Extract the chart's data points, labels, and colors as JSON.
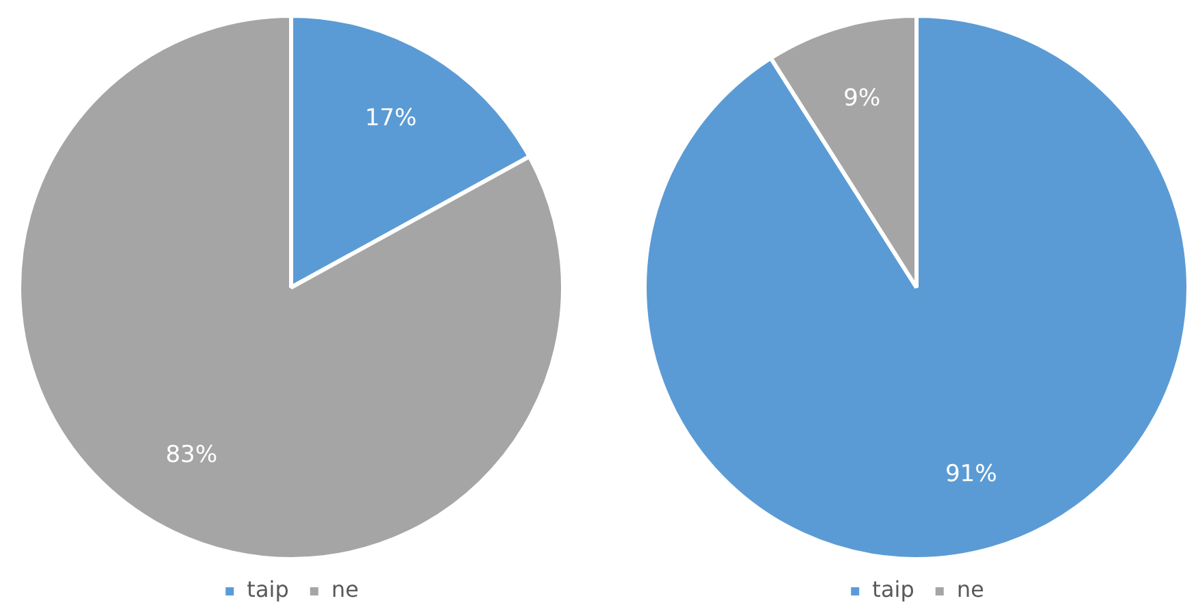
{
  "chart_data": [
    {
      "type": "pie",
      "categories": [
        "taip",
        "ne"
      ],
      "values": [
        17,
        83
      ],
      "colors": [
        "#5b9bd5",
        "#a5a5a5"
      ],
      "value_labels": [
        "17%",
        "83%"
      ],
      "legend": "bottom"
    },
    {
      "type": "pie",
      "categories": [
        "taip",
        "ne"
      ],
      "values": [
        91,
        9
      ],
      "colors": [
        "#5b9bd5",
        "#a5a5a5"
      ],
      "value_labels": [
        "91%",
        "9%"
      ],
      "legend": "bottom"
    }
  ]
}
